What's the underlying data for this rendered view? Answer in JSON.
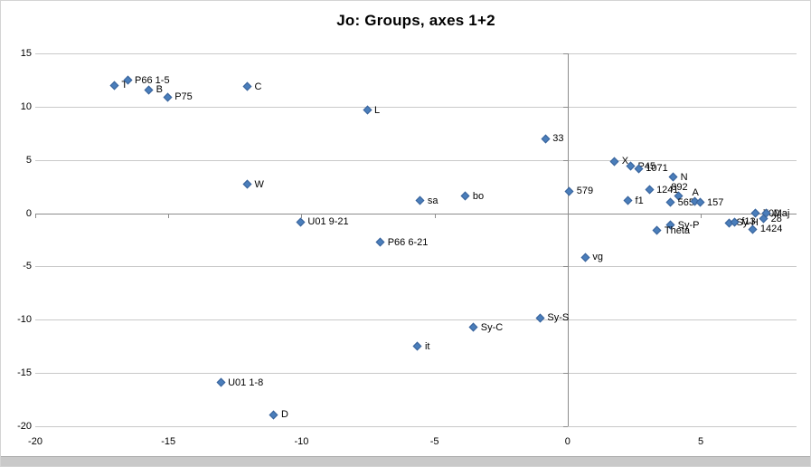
{
  "chart_data": {
    "type": "scatter",
    "title": "Jo: Groups, axes 1+2",
    "xlabel": "",
    "ylabel": "",
    "xlim": [
      -20,
      8.6
    ],
    "ylim": [
      -20,
      15
    ],
    "x_ticks": [
      -20,
      -15,
      -10,
      -5,
      0,
      5
    ],
    "y_ticks": [
      15,
      10,
      5,
      0,
      -5,
      -10,
      -15,
      -20
    ],
    "grid": "horizontal",
    "legend": "none",
    "marker_color": "#4a7ebb",
    "points": [
      {
        "label": "T",
        "x": -17.0,
        "y": 11.9,
        "lp": "right"
      },
      {
        "label": "P66 1-5",
        "x": -16.5,
        "y": 12.4,
        "lp": "right"
      },
      {
        "label": "B",
        "x": -15.7,
        "y": 11.5,
        "lp": "right"
      },
      {
        "label": "P75",
        "x": -15.0,
        "y": 10.8,
        "lp": "right"
      },
      {
        "label": "C",
        "x": -12.0,
        "y": 11.8,
        "lp": "right"
      },
      {
        "label": "L",
        "x": -7.5,
        "y": 9.6,
        "lp": "right"
      },
      {
        "label": "W",
        "x": -12.0,
        "y": 2.6,
        "lp": "right"
      },
      {
        "label": "U01 9-21",
        "x": -10.0,
        "y": -0.9,
        "lp": "right"
      },
      {
        "label": "P66 6-21",
        "x": -7.0,
        "y": -2.8,
        "lp": "right"
      },
      {
        "label": "sa",
        "x": -5.5,
        "y": 1.1,
        "lp": "right"
      },
      {
        "label": "bo",
        "x": -3.8,
        "y": 1.5,
        "lp": "right"
      },
      {
        "label": "33",
        "x": -0.8,
        "y": 6.9,
        "lp": "right"
      },
      {
        "label": "X",
        "x": 1.8,
        "y": 4.8,
        "lp": "right"
      },
      {
        "label": "P45",
        "x": 2.4,
        "y": 4.3,
        "lp": "right"
      },
      {
        "label": "1071",
        "x": 2.7,
        "y": 4.1,
        "lp": "right"
      },
      {
        "label": "N",
        "x": 4.0,
        "y": 3.3,
        "lp": "right"
      },
      {
        "label": "579",
        "x": 0.1,
        "y": 2.0,
        "lp": "right"
      },
      {
        "label": "1241",
        "x": 3.1,
        "y": 2.1,
        "lp": "right"
      },
      {
        "label": "892",
        "x": 4.2,
        "y": 1.5,
        "lp": "above"
      },
      {
        "label": "f1",
        "x": 2.3,
        "y": 1.1,
        "lp": "right"
      },
      {
        "label": "565",
        "x": 3.9,
        "y": 0.9,
        "lp": "right"
      },
      {
        "label": "A",
        "x": 4.8,
        "y": 1.0,
        "lp": "above"
      },
      {
        "label": "157",
        "x": 5.0,
        "y": 0.9,
        "lp": "right"
      },
      {
        "label": "700",
        "x": 7.1,
        "y": -0.1,
        "lp": "right"
      },
      {
        "label": "Maj",
        "x": 7.5,
        "y": -0.1,
        "lp": "right"
      },
      {
        "label": "28",
        "x": 7.4,
        "y": -0.6,
        "lp": "right"
      },
      {
        "label": "Sy-H",
        "x": 6.1,
        "y": -1.0,
        "lp": "right"
      },
      {
        "label": "f13",
        "x": 6.3,
        "y": -0.9,
        "lp": "right"
      },
      {
        "label": "1424",
        "x": 7.0,
        "y": -1.6,
        "lp": "right"
      },
      {
        "label": "Sy-P",
        "x": 3.9,
        "y": -1.2,
        "lp": "right"
      },
      {
        "label": "Theta",
        "x": 3.4,
        "y": -1.7,
        "lp": "right"
      },
      {
        "label": "vg",
        "x": 0.7,
        "y": -4.2,
        "lp": "right"
      },
      {
        "label": "Sy-S",
        "x": -1.0,
        "y": -9.9,
        "lp": "right"
      },
      {
        "label": "Sy-C",
        "x": -3.5,
        "y": -10.8,
        "lp": "right"
      },
      {
        "label": "it",
        "x": -5.6,
        "y": -12.6,
        "lp": "right"
      },
      {
        "label": "U01 1-8",
        "x": -13.0,
        "y": -16.0,
        "lp": "right"
      },
      {
        "label": "D",
        "x": -11.0,
        "y": -19.0,
        "lp": "right"
      }
    ]
  }
}
